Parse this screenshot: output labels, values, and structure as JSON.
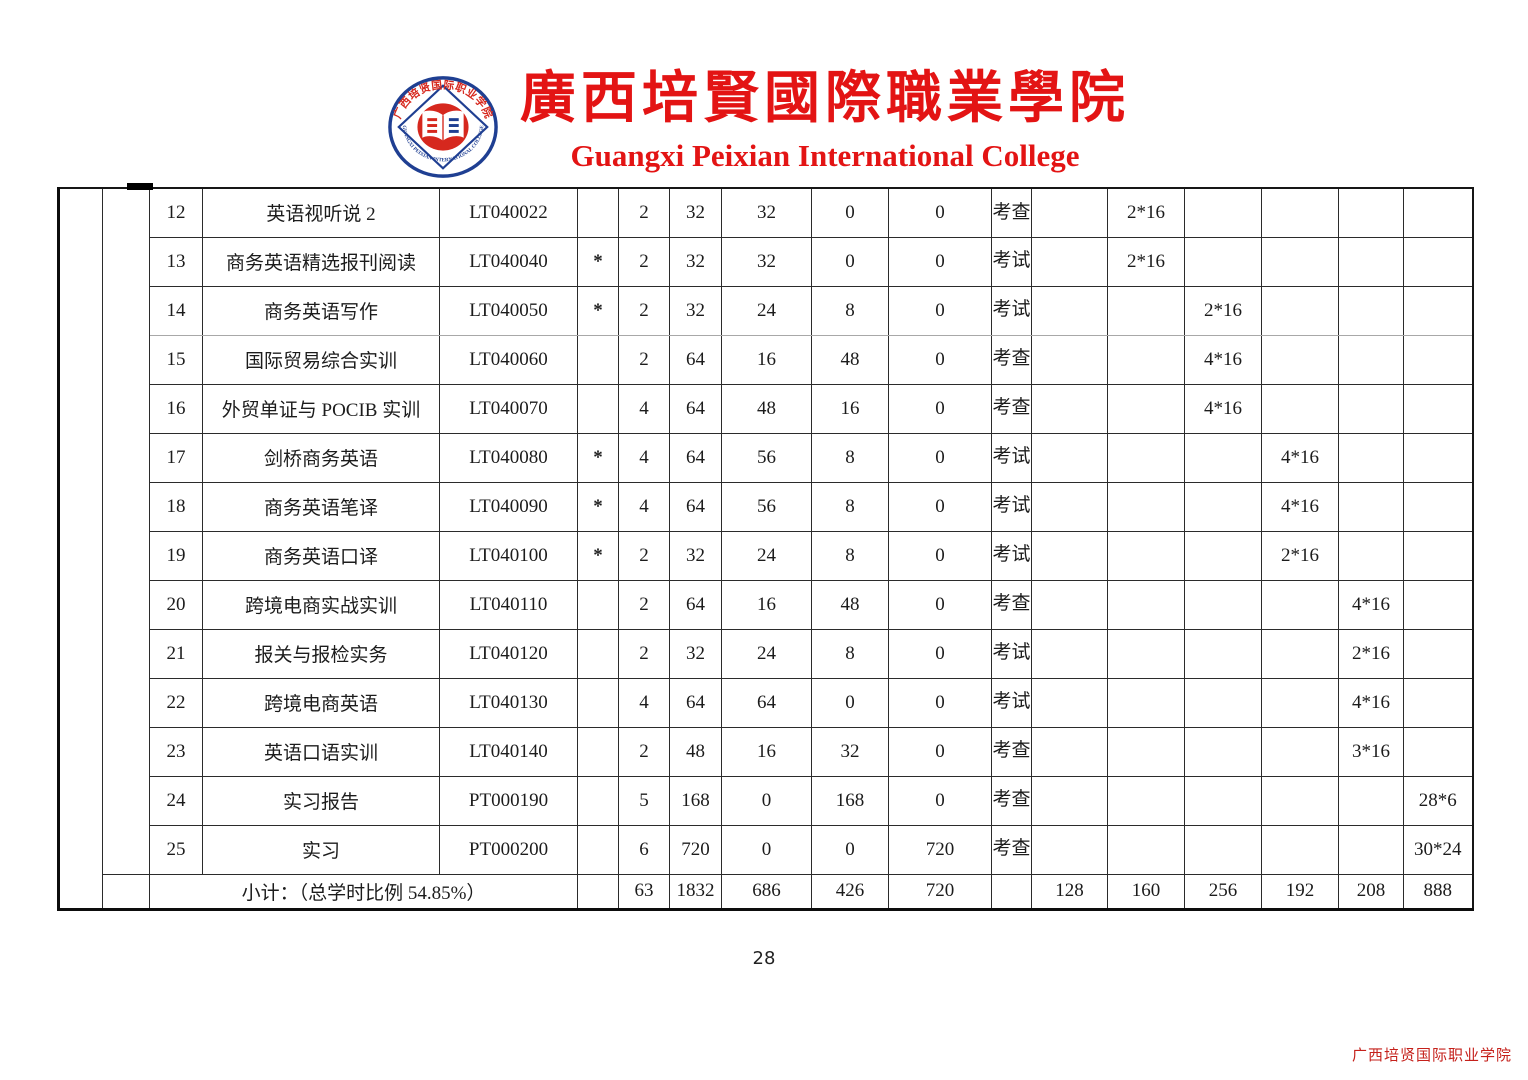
{
  "colors": {
    "brand_red": "#e31414",
    "logo_blue": "#1f3f92",
    "logo_red": "#d6281e",
    "footer_red": "#c5211b"
  },
  "header": {
    "title_zh": "廣西培賢國際職業學院",
    "title_en": "Guangxi Peixian International College",
    "logo_ring_top": "广西培贤国际职业学院",
    "logo_ring_bottom": "GUANGXI PEIXIAN INTERNATIONAL COLLEGE"
  },
  "table": {
    "rows": [
      {
        "no": "12",
        "course": "英语视听说 2",
        "code": "LT040022",
        "star": "",
        "credits": "2",
        "total": "32",
        "theory": "32",
        "practice": "0",
        "other": "0",
        "exam": "考查",
        "s1": "",
        "s2": "2*16",
        "s3": "",
        "s4": "",
        "s5": "",
        "s6": ""
      },
      {
        "no": "13",
        "course": "商务英语精选报刊阅读",
        "code": "LT040040",
        "star": "*",
        "credits": "2",
        "total": "32",
        "theory": "32",
        "practice": "0",
        "other": "0",
        "exam": "考试",
        "s1": "",
        "s2": "2*16",
        "s3": "",
        "s4": "",
        "s5": "",
        "s6": ""
      },
      {
        "no": "14",
        "course": "商务英语写作",
        "code": "LT040050",
        "star": "*",
        "credits": "2",
        "total": "32",
        "theory": "24",
        "practice": "8",
        "other": "0",
        "exam": "考试",
        "s1": "",
        "s2": "",
        "s3": "2*16",
        "s4": "",
        "s5": "",
        "s6": ""
      },
      {
        "no": "15",
        "course": "国际贸易综合实训",
        "code": "LT040060",
        "star": "",
        "credits": "2",
        "total": "64",
        "theory": "16",
        "practice": "48",
        "other": "0",
        "exam": "考查",
        "s1": "",
        "s2": "",
        "s3": "4*16",
        "s4": "",
        "s5": "",
        "s6": ""
      },
      {
        "no": "16",
        "course": "外贸单证与 POCIB 实训",
        "code": "LT040070",
        "star": "",
        "credits": "4",
        "total": "64",
        "theory": "48",
        "practice": "16",
        "other": "0",
        "exam": "考查",
        "s1": "",
        "s2": "",
        "s3": "4*16",
        "s4": "",
        "s5": "",
        "s6": ""
      },
      {
        "no": "17",
        "course": "剑桥商务英语",
        "code": "LT040080",
        "star": "*",
        "credits": "4",
        "total": "64",
        "theory": "56",
        "practice": "8",
        "other": "0",
        "exam": "考试",
        "s1": "",
        "s2": "",
        "s3": "",
        "s4": "4*16",
        "s5": "",
        "s6": ""
      },
      {
        "no": "18",
        "course": "商务英语笔译",
        "code": "LT040090",
        "star": "*",
        "credits": "4",
        "total": "64",
        "theory": "56",
        "practice": "8",
        "other": "0",
        "exam": "考试",
        "s1": "",
        "s2": "",
        "s3": "",
        "s4": "4*16",
        "s5": "",
        "s6": ""
      },
      {
        "no": "19",
        "course": "商务英语口译",
        "code": "LT040100",
        "star": "*",
        "credits": "2",
        "total": "32",
        "theory": "24",
        "practice": "8",
        "other": "0",
        "exam": "考试",
        "s1": "",
        "s2": "",
        "s3": "",
        "s4": "2*16",
        "s5": "",
        "s6": ""
      },
      {
        "no": "20",
        "course": "跨境电商实战实训",
        "code": "LT040110",
        "star": "",
        "credits": "2",
        "total": "64",
        "theory": "16",
        "practice": "48",
        "other": "0",
        "exam": "考查",
        "s1": "",
        "s2": "",
        "s3": "",
        "s4": "",
        "s5": "4*16",
        "s6": ""
      },
      {
        "no": "21",
        "course": "报关与报检实务",
        "code": "LT040120",
        "star": "",
        "credits": "2",
        "total": "32",
        "theory": "24",
        "practice": "8",
        "other": "0",
        "exam": "考试",
        "s1": "",
        "s2": "",
        "s3": "",
        "s4": "",
        "s5": "2*16",
        "s6": ""
      },
      {
        "no": "22",
        "course": "跨境电商英语",
        "code": "LT040130",
        "star": "",
        "credits": "4",
        "total": "64",
        "theory": "64",
        "practice": "0",
        "other": "0",
        "exam": "考试",
        "s1": "",
        "s2": "",
        "s3": "",
        "s4": "",
        "s5": "4*16",
        "s6": ""
      },
      {
        "no": "23",
        "course": "英语口语实训",
        "code": "LT040140",
        "star": "",
        "credits": "2",
        "total": "48",
        "theory": "16",
        "practice": "32",
        "other": "0",
        "exam": "考查",
        "s1": "",
        "s2": "",
        "s3": "",
        "s4": "",
        "s5": "3*16",
        "s6": ""
      },
      {
        "no": "24",
        "course": "实习报告",
        "code": "PT000190",
        "star": "",
        "credits": "5",
        "total": "168",
        "theory": "0",
        "practice": "168",
        "other": "0",
        "exam": "考查",
        "s1": "",
        "s2": "",
        "s3": "",
        "s4": "",
        "s5": "",
        "s6": "28*6"
      },
      {
        "no": "25",
        "course": "实习",
        "code": "PT000200",
        "star": "",
        "credits": "6",
        "total": "720",
        "theory": "0",
        "practice": "0",
        "other": "720",
        "exam": "考查",
        "s1": "",
        "s2": "",
        "s3": "",
        "s4": "",
        "s5": "",
        "s6": "30*24"
      }
    ],
    "subtotal": {
      "label": "小计：（总学时比例 54.85%）",
      "credits": "63",
      "total": "1832",
      "theory": "686",
      "practice": "426",
      "other": "720",
      "exam": "",
      "s1": "128",
      "s2": "160",
      "s3": "256",
      "s4": "192",
      "s5": "208",
      "s6": "888"
    }
  },
  "page_number": "28",
  "footer": {
    "college_name": "广西培贤国际职业学院"
  }
}
